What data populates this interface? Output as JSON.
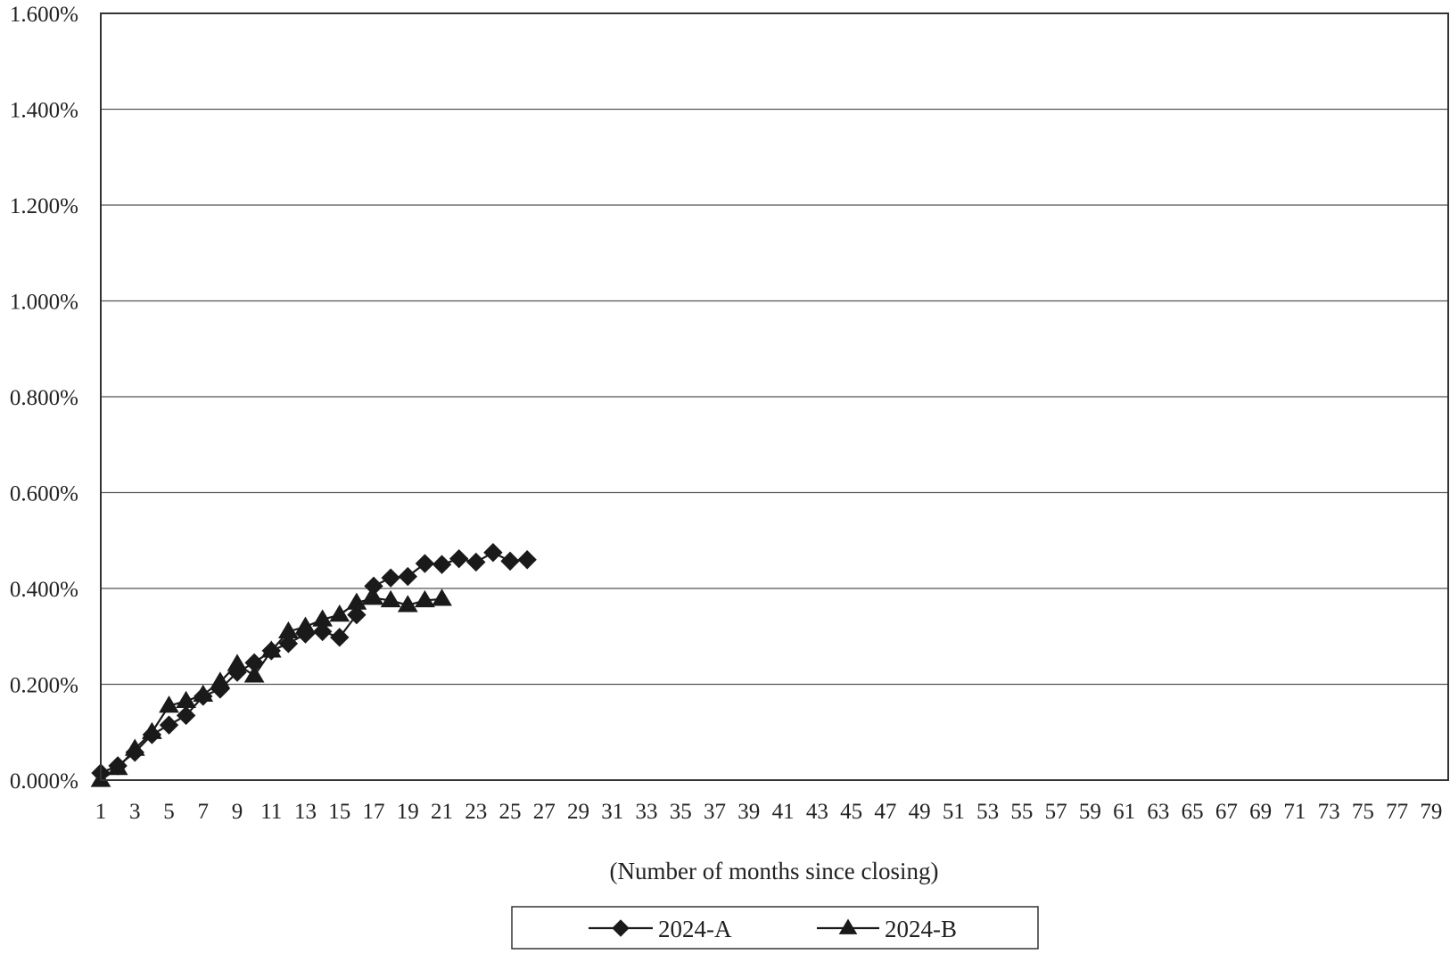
{
  "chart_data": {
    "type": "line",
    "title": "",
    "xlabel": "(Number of months since closing)",
    "ylabel": "",
    "x_range": [
      1,
      80
    ],
    "ylim": [
      0,
      1.6
    ],
    "y_ticks": [
      "0.000%",
      "0.200%",
      "0.400%",
      "0.600%",
      "0.800%",
      "1.000%",
      "1.200%",
      "1.400%",
      "1.600%"
    ],
    "y_tick_values": [
      0,
      0.2,
      0.4,
      0.6,
      0.8,
      1.0,
      1.2,
      1.4,
      1.6
    ],
    "x_ticks": [
      "1",
      "3",
      "5",
      "7",
      "9",
      "11",
      "13",
      "15",
      "17",
      "19",
      "21",
      "23",
      "25",
      "27",
      "29",
      "31",
      "33",
      "35",
      "37",
      "39",
      "41",
      "43",
      "45",
      "47",
      "49",
      "51",
      "53",
      "55",
      "57",
      "59",
      "61",
      "63",
      "65",
      "67",
      "69",
      "71",
      "73",
      "75",
      "77",
      "79"
    ],
    "grid": "horizontal",
    "legend_position": "bottom",
    "series": [
      {
        "name": "2024-A",
        "marker": "diamond",
        "color": "#1a1a1a",
        "x": [
          1,
          2,
          3,
          4,
          5,
          6,
          7,
          8,
          9,
          10,
          11,
          12,
          13,
          14,
          15,
          16,
          17,
          18,
          19,
          20,
          21,
          22,
          23,
          24,
          25,
          26
        ],
        "values": [
          0.015,
          0.03,
          0.058,
          0.095,
          0.115,
          0.135,
          0.175,
          0.19,
          0.225,
          0.245,
          0.27,
          0.285,
          0.305,
          0.31,
          0.298,
          0.345,
          0.405,
          0.422,
          0.425,
          0.452,
          0.45,
          0.462,
          0.455,
          0.475,
          0.457,
          0.46
        ]
      },
      {
        "name": "2024-B",
        "marker": "triangle",
        "color": "#1a1a1a",
        "x": [
          1,
          2,
          3,
          4,
          5,
          6,
          7,
          8,
          9,
          10,
          11,
          12,
          13,
          14,
          15,
          16,
          17,
          18,
          19,
          20,
          21
        ],
        "values": [
          0.0,
          0.025,
          0.065,
          0.1,
          0.155,
          0.165,
          0.178,
          0.205,
          0.242,
          0.218,
          0.27,
          0.31,
          0.32,
          0.335,
          0.345,
          0.37,
          0.38,
          0.375,
          0.365,
          0.375,
          0.378
        ]
      }
    ]
  }
}
